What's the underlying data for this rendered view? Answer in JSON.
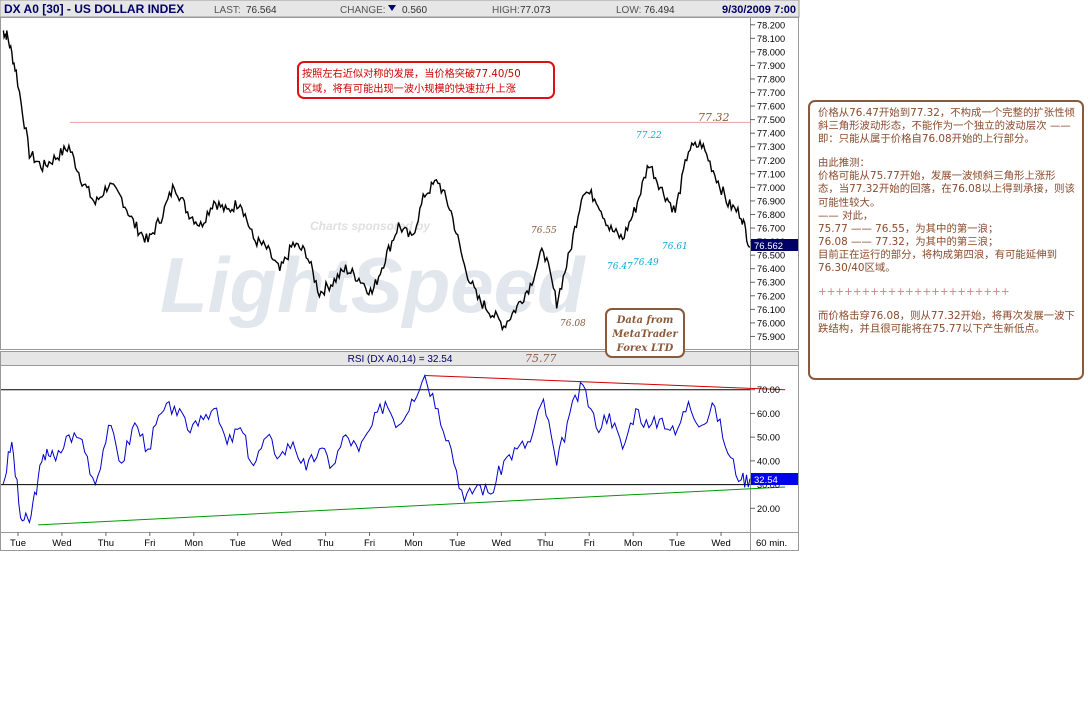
{
  "header": {
    "symbol": "DX A0 [30] - US DOLLAR INDEX",
    "last_label": "LAST:",
    "last_value": "76.564",
    "change_label": "CHANGE:",
    "change_value": "0.560",
    "high_label": "HIGH:",
    "high_value": "77.073",
    "low_label": "LOW:",
    "low_value": "76.494",
    "datetime": "9/30/2009 7:00"
  },
  "colors": {
    "price_line": "#000000",
    "rsi_line": "#0000cc",
    "resistance": "#cc0000",
    "support": "#009900",
    "annotation_brown": "#8a5a3a",
    "annotation_cyan": "#00aadd",
    "current_marker_bg": "#000066",
    "rsi_marker_bg": "#0000ee"
  },
  "watermark": {
    "sponsor_text": "Charts sponsored by",
    "brand_text": "LightSpeed"
  },
  "callout_top": {
    "line1": "按照左右近似对称的发展，当价格突破77.40/50",
    "line2": "区域，将有可能出现一波小规模的快速拉升上涨"
  },
  "data_source": {
    "line1": "Data from",
    "line2": "MetaTrader",
    "line3": "Forex LTD"
  },
  "annotations": {
    "a7732": "77.32",
    "a7722": "77.22",
    "a7655": "76.55",
    "a7608": "76.08",
    "a7577": "75.77",
    "a7647": "76.47",
    "a7649": "76.49",
    "a7661": "76.61"
  },
  "rsi_panel": {
    "title": "RSI (DX A0,14) = 32.54",
    "current_value": "32.54"
  },
  "current_price_marker": "76.562",
  "x_unit_label": "60 min.",
  "note": {
    "p1": "价格从76.47开始到77.32，不构成一个完整的扩张性倾斜三角形波动形态，不能作为一个独立的波动层次 ——即：只能从属于价格自76.08开始的上行部分。",
    "p2": "由此推测：\n价格可能从75.77开始，发展一波倾斜三角形上涨形态，当77.32开始的回落，在76.08以上得到承接，则该可能性较大。\n—— 对此，\n75.77 —— 76.55，为其中的第一浪；\n76.08 —— 77.32，为其中的第三浪；\n目前正在运行的部分，将构成第四浪，有可能延伸到76.30/40区域。",
    "sep": "++++++++++++++++++++++",
    "p3": "而价格击穿76.08，则从77.32开始，将再次发展一波下跌结构，并且很可能将在75.77以下产生新低点。"
  },
  "chart_data": {
    "type": "line",
    "title": "DX A0 [30] - US DOLLAR INDEX",
    "x_axis": {
      "tick_labels": [
        "Tue",
        "Wed",
        "Thu",
        "Fri",
        "Mon",
        "Tue",
        "Wed",
        "Thu",
        "Fri",
        "Mon",
        "Tue",
        "Wed",
        "Thu",
        "Fri",
        "Mon",
        "Tue",
        "Wed"
      ],
      "unit": "60 min."
    },
    "price": {
      "ylim": [
        75.8,
        78.25
      ],
      "yticks": [
        75.9,
        76.0,
        76.1,
        76.2,
        76.3,
        76.4,
        76.5,
        76.6,
        76.7,
        76.8,
        76.9,
        77.0,
        77.1,
        77.2,
        77.3,
        77.4,
        77.5,
        77.6,
        77.7,
        77.8,
        77.9,
        78.0,
        78.1,
        78.2
      ],
      "tick_label_format": "fixed3",
      "resistance_level": 77.48,
      "current": 76.562,
      "x": [
        0,
        0.1,
        0.3,
        0.6,
        0.9,
        1.2,
        1.5,
        1.8,
        2.1,
        2.4,
        2.7,
        3.0,
        3.3,
        3.6,
        3.9,
        4.2,
        4.5,
        4.8,
        5.1,
        5.4,
        5.7,
        6.0,
        6.3,
        6.6,
        6.9,
        7.2,
        7.5,
        7.8,
        8.1,
        8.4,
        8.7,
        9.0,
        9.3,
        9.6,
        9.9,
        10.2,
        10.5,
        10.8,
        11.1,
        11.4,
        11.7,
        12.0,
        12.3,
        12.6,
        12.9,
        13.2,
        13.5,
        13.8,
        14.1,
        14.4,
        14.7,
        15.0,
        15.3,
        15.6,
        15.9,
        16.2,
        16.5,
        16.8,
        17.0
      ],
      "close": [
        78.15,
        78.12,
        77.85,
        77.25,
        77.15,
        77.22,
        77.3,
        77.05,
        76.88,
        77.02,
        76.92,
        76.72,
        76.6,
        76.78,
        77.02,
        76.82,
        76.72,
        76.9,
        76.82,
        76.9,
        76.62,
        76.55,
        76.38,
        76.58,
        76.52,
        76.22,
        76.3,
        76.4,
        76.33,
        76.22,
        76.48,
        76.72,
        76.62,
        76.95,
        77.05,
        76.82,
        76.42,
        76.18,
        76.08,
        75.98,
        76.12,
        76.28,
        76.55,
        76.15,
        76.52,
        76.98,
        76.92,
        76.7,
        76.62,
        76.85,
        77.18,
        76.98,
        76.82,
        77.28,
        77.32,
        77.1,
        76.88,
        76.8,
        76.56
      ]
    },
    "rsi": {
      "ylim": [
        10,
        80
      ],
      "yticks": [
        20,
        30,
        40,
        50,
        60,
        70
      ],
      "tick_label_format": "fixed2",
      "overbought": 70,
      "oversold": 30,
      "current": 32.54,
      "resistance_line": {
        "from": [
          9.6,
          76
        ],
        "to": [
          17.8,
          70
        ]
      },
      "support_line": {
        "from": [
          0.8,
          13
        ],
        "to": [
          17.8,
          29
        ]
      },
      "x": [
        0,
        0.2,
        0.4,
        0.6,
        0.8,
        1.0,
        1.2,
        1.5,
        1.8,
        2.1,
        2.4,
        2.7,
        3.0,
        3.3,
        3.6,
        3.9,
        4.2,
        4.5,
        4.8,
        5.1,
        5.4,
        5.7,
        6.0,
        6.3,
        6.6,
        6.9,
        7.2,
        7.5,
        7.8,
        8.1,
        8.4,
        8.7,
        9.0,
        9.3,
        9.6,
        9.9,
        10.2,
        10.5,
        10.8,
        11.1,
        11.4,
        11.7,
        12.0,
        12.3,
        12.6,
        12.9,
        13.2,
        13.5,
        13.8,
        14.1,
        14.4,
        14.7,
        15.0,
        15.3,
        15.6,
        15.9,
        16.2,
        16.5,
        16.8,
        17.0
      ],
      "values": [
        30,
        48,
        16,
        14,
        33,
        45,
        40,
        51,
        49,
        30,
        55,
        39,
        56,
        45,
        60,
        63,
        53,
        59,
        62,
        47,
        54,
        38,
        50,
        42,
        48,
        36,
        45,
        38,
        51,
        44,
        55,
        65,
        55,
        66,
        76,
        62,
        45,
        23,
        30,
        26,
        40,
        45,
        48,
        66,
        38,
        60,
        72,
        54,
        60,
        45,
        62,
        54,
        58,
        51,
        65,
        55,
        63,
        43,
        32,
        32.5
      ]
    }
  }
}
